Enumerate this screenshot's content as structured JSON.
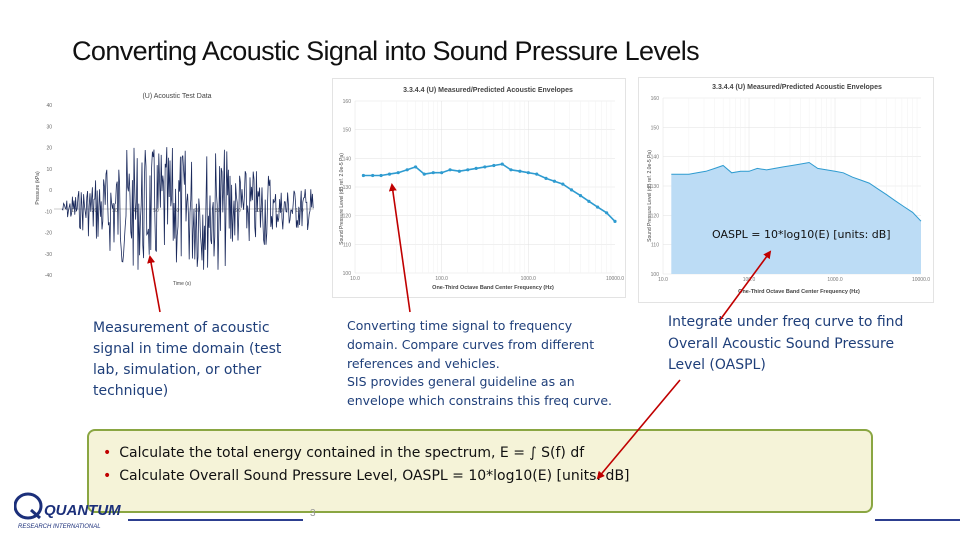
{
  "slide": {
    "title": "Converting Acoustic Signal into Sound Pressure Levels",
    "page_number": "3"
  },
  "panels": {
    "time": {
      "title": "(U) Acoustic Test Data",
      "ylabel": "Pressure (kPa)",
      "xlabel": "Time (s)",
      "y_ticks": [
        "40",
        "30",
        "20",
        "10",
        "0",
        "-10",
        "-20",
        "-30",
        "-40"
      ],
      "x_ticks": [
        "10",
        "20",
        "30",
        "40",
        "50",
        "60",
        "70",
        "80",
        "90",
        "100",
        "110",
        "120",
        "130"
      ]
    },
    "freq1": {
      "title": "3.3.4.4 (U) Measured/Predicted Acoustic Envelopes",
      "ylabel": "Sound Pressure Level (dB ref. 2.0e-5 Pa)",
      "xlabel": "One-Third Octave Band Center Frequency (Hz)",
      "y_ticks": [
        "160",
        "150",
        "140",
        "130",
        "120",
        "110",
        "100"
      ],
      "x_ticks": [
        "10.0",
        "100.0",
        "1000.0",
        "10000.0"
      ]
    },
    "freq2": {
      "title": "3.3.4.4 (U) Measured/Predicted Acoustic Envelopes",
      "ylabel": "Sound Pressure Level (dB ref. 2.0e-5 Pa)",
      "xlabel": "One-Third Octave Band Center Frequency (Hz)",
      "y_ticks": [
        "160",
        "150",
        "140",
        "130",
        "120",
        "110",
        "100"
      ],
      "x_ticks": [
        "10.0",
        "100.0",
        "1000.0",
        "10000.0"
      ],
      "annotation": "OASPL = 10*log10(E)   [units: dB]"
    }
  },
  "chart_data": {
    "type": "line",
    "x": [
      12.5,
      16,
      20,
      25,
      31.5,
      40,
      50,
      63,
      80,
      100,
      125,
      160,
      200,
      250,
      315,
      400,
      500,
      630,
      800,
      1000,
      1250,
      1600,
      2000,
      2500,
      3150,
      4000,
      5000,
      6300,
      8000,
      10000
    ],
    "series": [
      {
        "values": [
          134,
          134,
          134,
          134.5,
          135,
          136,
          137,
          134.5,
          135,
          135,
          136,
          135.5,
          136,
          136.5,
          137,
          137.5,
          138,
          136,
          135.5,
          135,
          134.5,
          133,
          132,
          131,
          129,
          127,
          125,
          123,
          121,
          118
        ]
      }
    ],
    "xlabel": "One-Third Octave Band Center Frequency (Hz)",
    "ylabel": "Sound Pressure Level (dB ref. 2.0e-5 Pa)",
    "ylim": [
      100,
      160
    ],
    "x_scale": "log"
  },
  "callouts": {
    "measurement": "Measurement of acoustic signal in time domain (test lab, simulation, or other technique)",
    "converting": [
      "Converting time signal to frequency",
      "domain.  Compare curves from different",
      "references and vehicles.",
      "SIS provides general guideline as an",
      "envelope which constrains this freq curve."
    ],
    "integrate": "Integrate under freq curve to find Overall Acoustic Sound Pressure Level (OASPL)"
  },
  "bullets": [
    "Calculate the total energy contained in the spectrum, E = ∫ S(f) df",
    "Calculate Overall Sound Pressure Level, OASPL = 10*log10(E)   [units: dB]"
  ],
  "logo": {
    "name": "QUANTUM",
    "tagline": "RESEARCH INTERNATIONAL"
  },
  "colors": {
    "accent_red": "#c00000",
    "callout_blue": "#1f3f7a",
    "line_blue": "#2e9bd0",
    "fill_blue": "#bcdcf5",
    "bullet_box_fill": "#f5f3d8",
    "bullet_box_border": "#8aa642"
  }
}
